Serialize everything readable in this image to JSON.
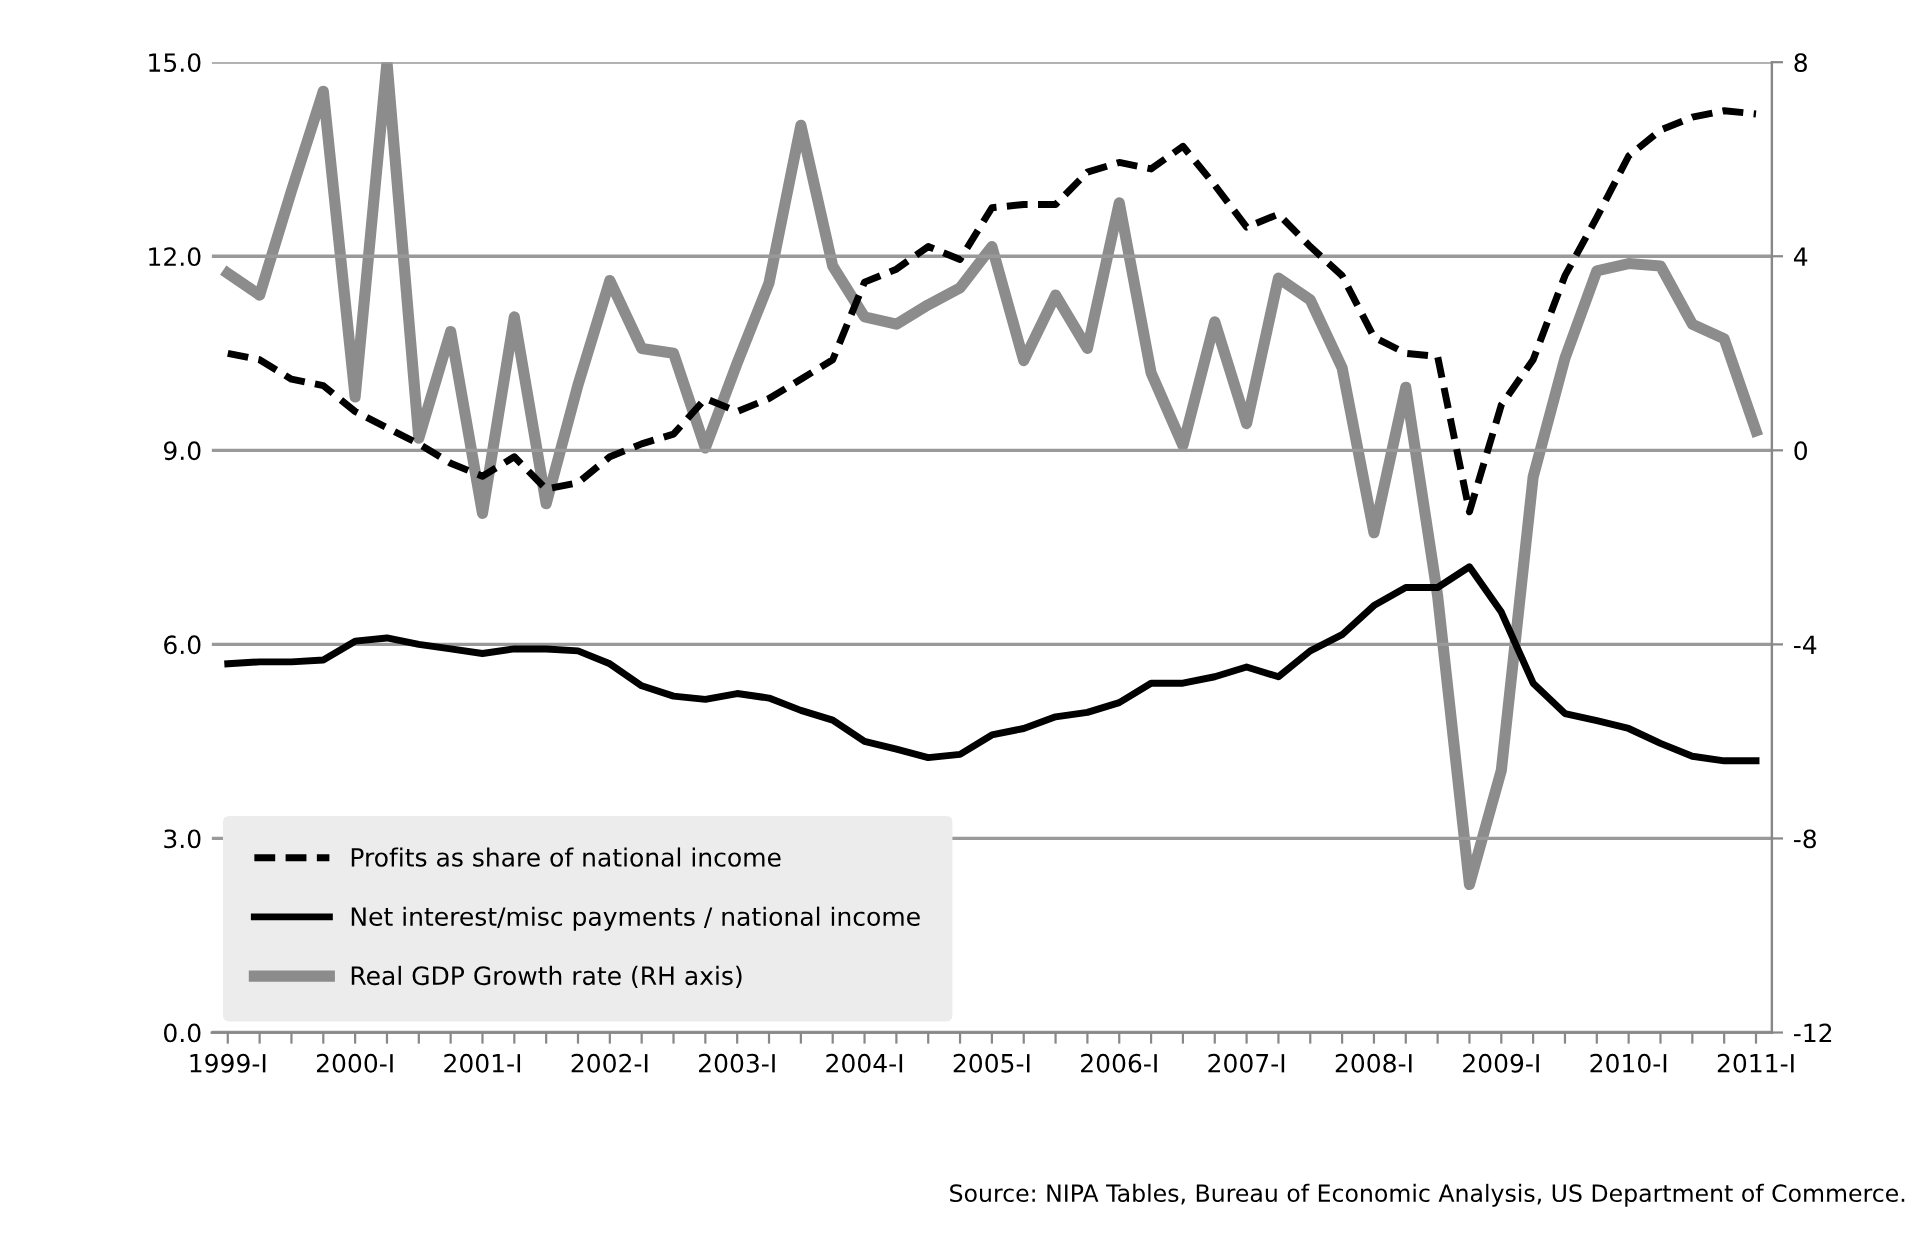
{
  "chart_data": {
    "type": "line",
    "categories": [
      "1999-I",
      null,
      null,
      null,
      "2000-I",
      null,
      null,
      null,
      "2001-I",
      null,
      null,
      null,
      "2002-I",
      null,
      null,
      null,
      "2003-I",
      null,
      null,
      null,
      "2004-I",
      null,
      null,
      null,
      "2005-I",
      null,
      null,
      null,
      "2006-I",
      null,
      null,
      null,
      "2007-I",
      null,
      null,
      null,
      "2008-I",
      null,
      null,
      null,
      "2009-I",
      null,
      null,
      null,
      "2010-I",
      null,
      null,
      null,
      "2011-I"
    ],
    "series": [
      {
        "name": "Profits as share of national income",
        "color": "#000000",
        "line_style": "dashed",
        "values": [
          10.5,
          10.4,
          10.1,
          10.0,
          9.6,
          9.35,
          9.1,
          8.8,
          8.6,
          8.9,
          8.4,
          8.5,
          8.9,
          9.1,
          9.25,
          9.8,
          9.6,
          9.8,
          10.1,
          10.4,
          11.6,
          11.8,
          12.15,
          11.95,
          12.75,
          12.8,
          12.8,
          13.3,
          13.45,
          13.35,
          13.7,
          13.1,
          12.45,
          12.65,
          12.15,
          11.7,
          10.75,
          10.5,
          10.45,
          8.05,
          9.7,
          10.4,
          11.7,
          12.6,
          13.55,
          13.95,
          14.15,
          14.25,
          14.2
        ]
      },
      {
        "name": "Net interest/misc payments / national income",
        "color": "#000000",
        "line_style": "solid",
        "values": [
          5.7,
          5.73,
          5.73,
          5.76,
          6.05,
          6.1,
          6.0,
          5.93,
          5.86,
          5.93,
          5.93,
          5.9,
          5.7,
          5.36,
          5.2,
          5.15,
          5.24,
          5.17,
          4.98,
          4.83,
          4.5,
          4.38,
          4.25,
          4.3,
          4.6,
          4.7,
          4.88,
          4.95,
          5.1,
          5.4,
          5.4,
          5.5,
          5.65,
          5.5,
          5.9,
          6.15,
          6.6,
          6.88,
          6.88,
          7.2,
          6.5,
          5.4,
          4.93,
          4.82,
          4.7,
          4.47,
          4.27,
          4.2,
          4.2
        ]
      },
      {
        "name": "Real GDP Growth rate (RH axis)",
        "color": "#8c8c8c",
        "line_style": "solid",
        "axis": "y2",
        "values": [
          3.65,
          3.2,
          5.35,
          7.4,
          1.1,
          8.0,
          0.25,
          2.45,
          -1.3,
          2.75,
          -1.1,
          1.35,
          3.5,
          2.1,
          2.0,
          0.05,
          1.8,
          3.45,
          6.7,
          3.8,
          2.75,
          2.6,
          3.0,
          3.35,
          4.2,
          1.85,
          3.2,
          2.1,
          5.1,
          1.6,
          0.1,
          2.65,
          0.55,
          3.55,
          3.1,
          1.7,
          -1.7,
          1.3,
          -3.0,
          -8.95,
          -6.6,
          -0.55,
          1.9,
          3.7,
          3.85,
          3.8,
          2.6,
          2.3,
          0.4
        ]
      }
    ],
    "ylim": [
      0,
      15
    ],
    "yticks": [
      {
        "value": 0,
        "label": "0.0"
      },
      {
        "value": 3,
        "label": "3.0"
      },
      {
        "value": 6,
        "label": "6.0"
      },
      {
        "value": 9,
        "label": "9.0"
      },
      {
        "value": 12,
        "label": "12.0"
      },
      {
        "value": 15,
        "label": "15.0"
      }
    ],
    "y2lim": [
      -12,
      8
    ],
    "y2ticks": [
      {
        "value": -12,
        "label": "-12"
      },
      {
        "value": -8,
        "label": "-8"
      },
      {
        "value": -4,
        "label": "-4"
      },
      0,
      4,
      8
    ],
    "grid": "y",
    "legend": "bottom left",
    "annotations": [
      "Source: NIPA Tables, Bureau of Economic Analysis, US Department of Commerce."
    ]
  }
}
